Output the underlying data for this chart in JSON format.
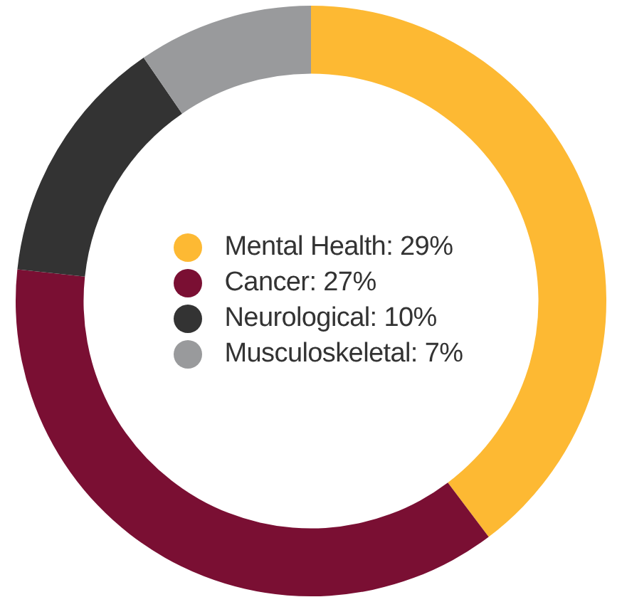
{
  "chart_data": {
    "type": "donut",
    "categories": [
      "Mental Health",
      "Cancer",
      "Neurological",
      "Musculoskeletal"
    ],
    "values": [
      29,
      27,
      10,
      7
    ],
    "value_labels": [
      "29%",
      "27%",
      "10%",
      "7%"
    ],
    "colors": [
      "#fdb933",
      "#7a0f33",
      "#333333",
      "#999a9c"
    ],
    "legend": "center"
  }
}
